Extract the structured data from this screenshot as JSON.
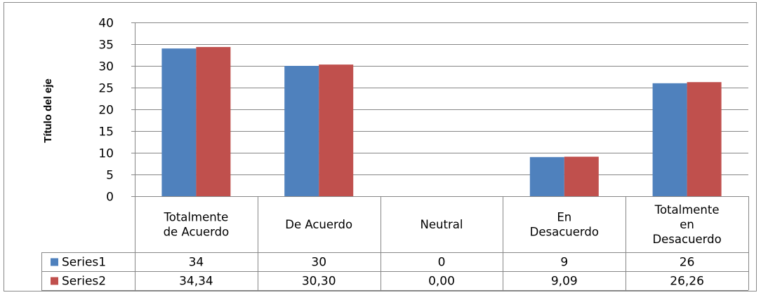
{
  "chart_data": {
    "type": "bar",
    "title": "",
    "xlabel": "",
    "ylabel": "Título del eje",
    "ylim": [
      0,
      40
    ],
    "yticks": [
      0,
      5,
      10,
      15,
      20,
      25,
      30,
      35,
      40
    ],
    "grid": true,
    "categories": [
      [
        "Totalmente",
        "de Acuerdo"
      ],
      [
        "De Acuerdo"
      ],
      [
        "Neutral"
      ],
      [
        "En",
        "Desacuerdo"
      ],
      [
        "Totalmente",
        "en",
        "Desacuerdo"
      ]
    ],
    "series": [
      {
        "name": "Series1",
        "values": [
          34,
          30,
          0,
          9,
          26
        ],
        "labels": [
          "34",
          "30",
          "0",
          "9",
          "26"
        ],
        "color": "#4f81bd"
      },
      {
        "name": "Series2",
        "values": [
          34.34,
          30.3,
          0.0,
          9.09,
          26.26
        ],
        "labels": [
          "34,34",
          "30,30",
          "0,00",
          "9,09",
          "26,26"
        ],
        "color": "#c0504d"
      }
    ],
    "legend": "data-table"
  }
}
